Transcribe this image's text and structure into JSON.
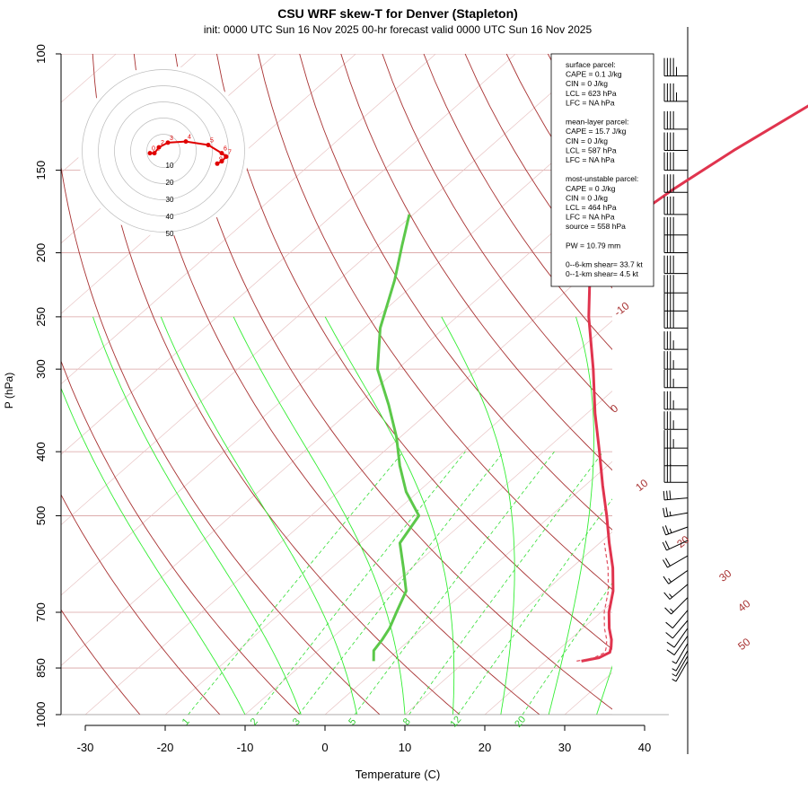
{
  "chart_data": {
    "type": "line",
    "title": "CSU WRF skew-T for Denver (Stapleton)",
    "subtitle": "init: 0000 UTC Sun 16 Nov 2025    00-hr forecast valid 0000 UTC Sun 16 Nov 2025",
    "xlabel": "Temperature (C)",
    "ylabel": "P (hPa)",
    "x_ticks": [
      "-30",
      "-20",
      "-10",
      "0",
      "10",
      "20",
      "30",
      "40"
    ],
    "x_tick_values": [
      -30,
      -20,
      -10,
      0,
      10,
      20,
      30,
      40
    ],
    "y_ticks": [
      "100",
      "150",
      "200",
      "250",
      "300",
      "400",
      "500",
      "700",
      "850",
      "1000"
    ],
    "y_tick_values": [
      100,
      150,
      200,
      250,
      300,
      400,
      500,
      700,
      850,
      1000
    ],
    "isotherm_labels": [
      "-10",
      "0",
      "10",
      "20",
      "30",
      "40",
      "50"
    ],
    "isotherm_values": [
      -10,
      0,
      10,
      20,
      30,
      40,
      50
    ],
    "mixing_ratio_labels": [
      "1",
      "2",
      "3",
      "5",
      "8",
      "12",
      "20"
    ],
    "mixing_ratio_values": [
      1,
      2,
      3,
      5,
      8,
      12,
      20
    ],
    "series": [
      {
        "name": "temperature",
        "color": "#e0344e",
        "points": [
          [
            830,
            24.5
          ],
          [
            820,
            26.2
          ],
          [
            805,
            26.8
          ],
          [
            790,
            26.2
          ],
          [
            770,
            25.2
          ],
          [
            740,
            23.3
          ],
          [
            700,
            21.0
          ],
          [
            650,
            18.5
          ],
          [
            600,
            15.2
          ],
          [
            550,
            11.2
          ],
          [
            500,
            7.0
          ],
          [
            450,
            2.2
          ],
          [
            400,
            -3.0
          ],
          [
            350,
            -9.0
          ],
          [
            300,
            -15.5
          ],
          [
            250,
            -23.5
          ],
          [
            215,
            -29.5
          ],
          [
            200,
            -31.5
          ],
          [
            185,
            -32.5
          ],
          [
            160,
            -31.0
          ],
          [
            140,
            -29.0
          ],
          [
            120,
            -26.0
          ],
          [
            108,
            -24.0
          ]
        ]
      },
      {
        "name": "dewpoint",
        "color": "#5cc84a",
        "points": [
          [
            830,
            -1.5
          ],
          [
            800,
            -3.0
          ],
          [
            770,
            -3.5
          ],
          [
            740,
            -4.2
          ],
          [
            700,
            -5.6
          ],
          [
            650,
            -7.4
          ],
          [
            600,
            -11.0
          ],
          [
            550,
            -15.0
          ],
          [
            500,
            -16.5
          ],
          [
            460,
            -21.5
          ],
          [
            420,
            -26.0
          ],
          [
            380,
            -30.5
          ],
          [
            340,
            -36.0
          ],
          [
            300,
            -42.5
          ],
          [
            260,
            -48.0
          ],
          [
            220,
            -53.0
          ],
          [
            195,
            -57.0
          ],
          [
            175,
            -60.5
          ]
        ]
      }
    ],
    "hodograph": {
      "ring_labels": [
        "10",
        "20",
        "30",
        "40",
        "50"
      ],
      "ring_values": [
        10,
        20,
        30,
        40,
        50
      ],
      "height_labels": [
        "0",
        "1",
        "2",
        "3",
        "4",
        "5",
        "6",
        "7",
        "8",
        "9"
      ],
      "u": [
        -3,
        -2,
        -1,
        1,
        5,
        10,
        13,
        14,
        13,
        12
      ],
      "v": [
        -2,
        -2,
        3,
        7,
        8,
        5,
        -2,
        -5,
        -9,
        -11
      ],
      "color": "#e00000"
    },
    "legend": {
      "position": "top-right",
      "lines": [
        "surface parcel:",
        "CAPE = 0.1 J/kg",
        "CIN = 0 J/kg",
        "LCL = 623 hPa",
        "LFC = NA hPa",
        "",
        "mean-layer parcel:",
        "CAPE = 15.7 J/kg",
        "CIN = 0 J/kg",
        "LCL = 587 hPa",
        "LFC = NA hPa",
        "",
        "most-unstable parcel:",
        "CAPE = 0 J/kg",
        "CIN = 0 J/kg",
        "LCL = 464 hPa",
        "LFC = NA hPa",
        "source = 558 hPa",
        "",
        "PW =  10.79 mm",
        "",
        "0--6-km shear= 33.7 kt",
        "0--1-km shear= 4.5 kt"
      ]
    },
    "wind_barbs": [
      {
        "p": 108,
        "speed": 45,
        "dir": 270
      },
      {
        "p": 118,
        "speed": 45,
        "dir": 270
      },
      {
        "p": 130,
        "speed": 40,
        "dir": 270
      },
      {
        "p": 140,
        "speed": 40,
        "dir": 270
      },
      {
        "p": 150,
        "speed": 40,
        "dir": 270
      },
      {
        "p": 162,
        "speed": 40,
        "dir": 270
      },
      {
        "p": 175,
        "speed": 40,
        "dir": 270
      },
      {
        "p": 188,
        "speed": 40,
        "dir": 270
      },
      {
        "p": 200,
        "speed": 40,
        "dir": 270
      },
      {
        "p": 215,
        "speed": 40,
        "dir": 270
      },
      {
        "p": 230,
        "speed": 40,
        "dir": 270
      },
      {
        "p": 245,
        "speed": 40,
        "dir": 270
      },
      {
        "p": 260,
        "speed": 40,
        "dir": 270
      },
      {
        "p": 280,
        "speed": 35,
        "dir": 270
      },
      {
        "p": 300,
        "speed": 35,
        "dir": 270
      },
      {
        "p": 320,
        "speed": 35,
        "dir": 270
      },
      {
        "p": 345,
        "speed": 35,
        "dir": 270
      },
      {
        "p": 370,
        "speed": 35,
        "dir": 270
      },
      {
        "p": 395,
        "speed": 35,
        "dir": 270
      },
      {
        "p": 420,
        "speed": 30,
        "dir": 270
      },
      {
        "p": 445,
        "speed": 30,
        "dir": 270
      },
      {
        "p": 470,
        "speed": 30,
        "dir": 275
      },
      {
        "p": 495,
        "speed": 25,
        "dir": 280
      },
      {
        "p": 520,
        "speed": 25,
        "dir": 290
      },
      {
        "p": 545,
        "speed": 20,
        "dir": 295
      },
      {
        "p": 575,
        "speed": 20,
        "dir": 300
      },
      {
        "p": 605,
        "speed": 15,
        "dir": 305
      },
      {
        "p": 635,
        "speed": 15,
        "dir": 310
      },
      {
        "p": 665,
        "speed": 15,
        "dir": 315
      },
      {
        "p": 695,
        "speed": 10,
        "dir": 320
      },
      {
        "p": 720,
        "speed": 10,
        "dir": 320
      },
      {
        "p": 740,
        "speed": 10,
        "dir": 325
      },
      {
        "p": 760,
        "speed": 10,
        "dir": 325
      },
      {
        "p": 780,
        "speed": 5,
        "dir": 330
      },
      {
        "p": 800,
        "speed": 5,
        "dir": 330
      },
      {
        "p": 815,
        "speed": 5,
        "dir": 330
      },
      {
        "p": 830,
        "speed": 5,
        "dir": 330
      }
    ],
    "xlim": [
      -33,
      44
    ],
    "ylim": [
      1000,
      100
    ],
    "y_scale": "log",
    "skew": true,
    "grid": true
  }
}
